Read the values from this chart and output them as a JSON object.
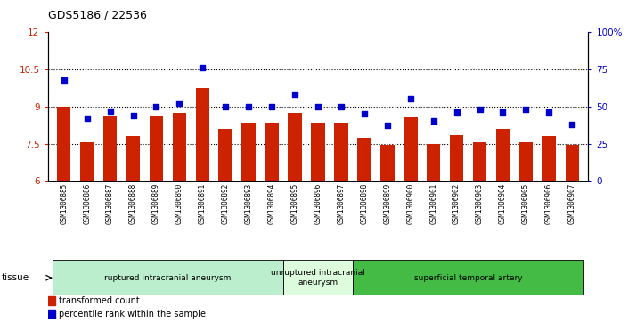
{
  "title": "GDS5186 / 22536",
  "samples": [
    "GSM1306885",
    "GSM1306886",
    "GSM1306887",
    "GSM1306888",
    "GSM1306889",
    "GSM1306890",
    "GSM1306891",
    "GSM1306892",
    "GSM1306893",
    "GSM1306894",
    "GSM1306895",
    "GSM1306896",
    "GSM1306897",
    "GSM1306898",
    "GSM1306899",
    "GSM1306900",
    "GSM1306901",
    "GSM1306902",
    "GSM1306903",
    "GSM1306904",
    "GSM1306905",
    "GSM1306906",
    "GSM1306907"
  ],
  "bar_values": [
    9.0,
    7.55,
    8.65,
    7.8,
    8.65,
    8.75,
    9.75,
    8.1,
    8.35,
    8.35,
    8.75,
    8.35,
    8.35,
    7.75,
    7.45,
    8.6,
    7.5,
    7.85,
    7.55,
    8.1,
    7.55,
    7.8,
    7.45
  ],
  "dot_values": [
    68,
    42,
    47,
    44,
    50,
    52,
    76,
    50,
    50,
    50,
    58,
    50,
    50,
    45,
    37,
    55,
    40,
    46,
    48,
    46,
    48,
    46,
    38
  ],
  "bar_color": "#cc2200",
  "dot_color": "#0000cc",
  "ylim_left": [
    6,
    12
  ],
  "ylim_right": [
    0,
    100
  ],
  "yticks_left": [
    6,
    7.5,
    9,
    10.5,
    12
  ],
  "yticks_right": [
    0,
    25,
    50,
    75,
    100
  ],
  "ytick_labels_left": [
    "6",
    "7.5",
    "9",
    "10.5",
    "12"
  ],
  "ytick_labels_right": [
    "0",
    "25",
    "50",
    "75",
    "100%"
  ],
  "groups": [
    {
      "label": "ruptured intracranial aneurysm",
      "start": 0,
      "end": 10,
      "color": "#bbeecc"
    },
    {
      "label": "unruptured intracranial\naneurysm",
      "start": 10,
      "end": 13,
      "color": "#ddfcdd"
    },
    {
      "label": "superficial temporal artery",
      "start": 13,
      "end": 23,
      "color": "#44bb44"
    }
  ],
  "tissue_label": "tissue",
  "legend_bar_label": "transformed count",
  "legend_dot_label": "percentile rank within the sample",
  "dotted_lines": [
    7.5,
    9.0,
    10.5
  ],
  "bar_width": 0.6,
  "background_color": "#ffffff",
  "plot_bg_color": "#ffffff",
  "tick_area_bg": "#cccccc"
}
